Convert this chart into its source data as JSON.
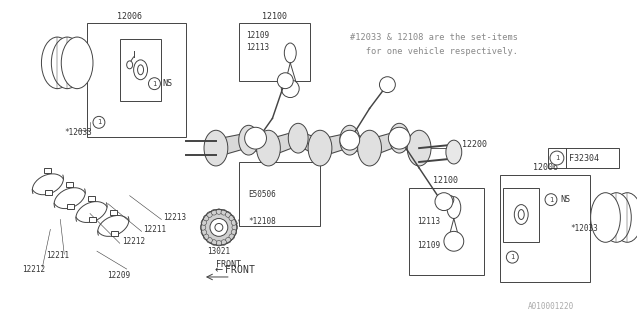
{
  "bg_color": "#ffffff",
  "line_color": "#444444",
  "text_color": "#333333",
  "note_color": "#888888",
  "note_text1": "#12033 & 12108 are the set-items",
  "note_text2": "   for one vehicle respectively.",
  "part_code": "F32304",
  "diagram_code": "A010001220",
  "font_family": "monospace",
  "lw": 0.7,
  "fs": 6.0
}
